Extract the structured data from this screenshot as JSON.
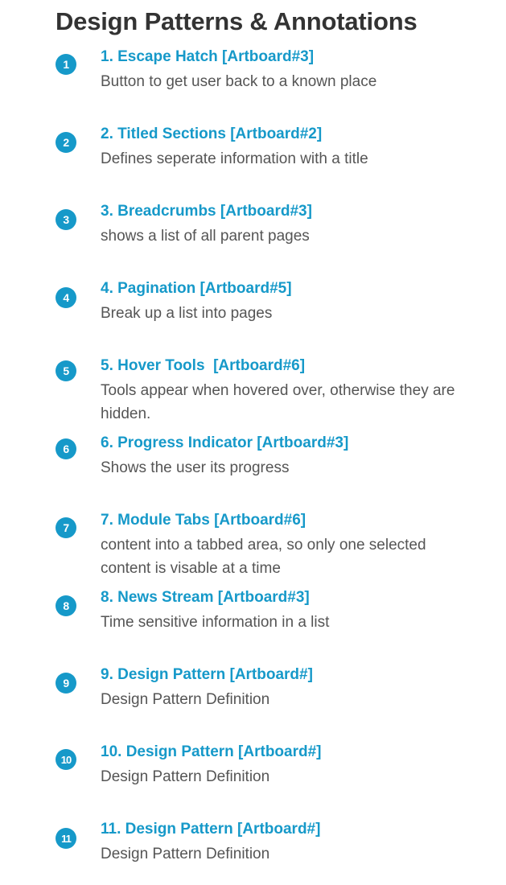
{
  "page": {
    "title": "Design Patterns & Annotations"
  },
  "colors": {
    "accent": "#1699c9",
    "title": "#333333",
    "description": "#555555"
  },
  "annotations": [
    {
      "number": "1",
      "title": "1. Escape Hatch [Artboard#3]",
      "description": "Button to get user back to a known place"
    },
    {
      "number": "2",
      "title": "2. Titled Sections [Artboard#2]",
      "description": "Defines seperate information with a title"
    },
    {
      "number": "3",
      "title": "3. Breadcrumbs [Artboard#3]",
      "description": "shows a list of all parent pages"
    },
    {
      "number": "4",
      "title": "4. Pagination [Artboard#5]",
      "description": "Break up a list into pages"
    },
    {
      "number": "5",
      "title": "5. Hover Tools  [Artboard#6]",
      "description": "Tools appear when hovered over, otherwise they are hidden."
    },
    {
      "number": "6",
      "title": "6. Progress Indicator [Artboard#3]",
      "description": "Shows the user its progress"
    },
    {
      "number": "7",
      "title": "7. Module Tabs [Artboard#6]",
      "description": "content into a tabbed area, so only one selected content is visable at a time"
    },
    {
      "number": "8",
      "title": "8. News Stream [Artboard#3]",
      "description": "Time sensitive information in a list"
    },
    {
      "number": "9",
      "title": "9. Design Pattern [Artboard#]",
      "description": "Design Pattern Definition"
    },
    {
      "number": "10",
      "title": "10. Design Pattern [Artboard#]",
      "description": "Design Pattern Definition"
    },
    {
      "number": "11",
      "title": "11. Design Pattern [Artboard#]",
      "description": "Design Pattern Definition"
    }
  ]
}
